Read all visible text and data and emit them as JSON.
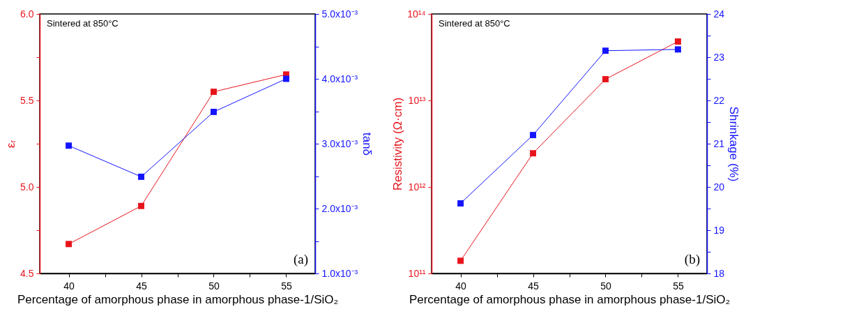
{
  "chart_data": [
    {
      "type": "line",
      "xlabel": "Percentage of amorphous phase in amorphous phase-1/SiO₂",
      "ylabel": "εᵣ",
      "y2label": "tanδ",
      "x": [
        40,
        45,
        50,
        55
      ],
      "xlim": [
        38,
        57
      ],
      "xticks": [
        40,
        {
          "value": 42.5,
          "label": null
        },
        45,
        {
          "value": 47.5,
          "label": null
        },
        50,
        {
          "value": 52.5,
          "label": null
        },
        55
      ],
      "ylim": [
        4.5,
        6.0
      ],
      "yticks": [
        {
          "value": 4.5,
          "label": "4.5"
        },
        {
          "value": 4.75,
          "label": null
        },
        {
          "value": 5,
          "label": "5.0"
        },
        {
          "value": 5.25,
          "label": null
        },
        {
          "value": 5.5,
          "label": "5.5"
        },
        {
          "value": 5.75,
          "label": null
        },
        {
          "value": 6,
          "label": "6.0"
        }
      ],
      "y2lim": [
        0.001,
        0.005
      ],
      "y2ticks": [
        {
          "value": 0.001,
          "label": "1.0x10⁻³"
        },
        {
          "value": 0.0015,
          "label": null
        },
        {
          "value": 0.002,
          "label": "2.0x10⁻³"
        },
        {
          "value": 0.0025,
          "label": null
        },
        {
          "value": 0.003,
          "label": "3.0x10⁻³"
        },
        {
          "value": 0.0035,
          "label": null
        },
        {
          "value": 0.004,
          "label": "4.0x10⁻³"
        },
        {
          "value": 0.0045,
          "label": null
        },
        {
          "value": 0.005,
          "label": "5.0x10⁻³"
        }
      ],
      "series": [
        {
          "color": "#e8141c",
          "values": [
            4.67,
            4.89,
            5.55,
            5.65
          ]
        },
        {
          "color": "#1414ff",
          "axis": "y2",
          "values": [
            0.00297,
            0.00249,
            0.00349,
            0.004
          ]
        }
      ],
      "marker": "square",
      "grid": false,
      "annotations": [
        "Sintered at 850°C",
        "(a)"
      ]
    },
    {
      "type": "line",
      "xlabel": "Percentage of amorphous phase in amorphous phase-1/SiO₂",
      "ylabel": "Resistivity (Ω·cm)",
      "y2label": "Shrinkage (%)",
      "x": [
        40,
        45,
        50,
        55
      ],
      "xlim": [
        38,
        57
      ],
      "xticks": [
        40,
        {
          "value": 42.5,
          "label": null
        },
        45,
        {
          "value": 47.5,
          "label": null
        },
        50,
        {
          "value": 52.5,
          "label": null
        },
        55
      ],
      "log": "y",
      "ylim": [
        100000000000.0,
        100000000000000.0
      ],
      "yticks": [
        {
          "value": 100000000000.0,
          "label": "10¹¹"
        },
        {
          "value": 1000000000000.0,
          "label": "10¹²"
        },
        {
          "value": 10000000000000.0,
          "label": "10¹³"
        },
        {
          "value": 100000000000000.0,
          "label": "10¹⁴"
        }
      ],
      "y2lim": [
        18,
        24
      ],
      "y2ticks": [
        18,
        {
          "value": 18.5,
          "label": null
        },
        19,
        {
          "value": 19.5,
          "label": null
        },
        20,
        {
          "value": 20.5,
          "label": null
        },
        21,
        {
          "value": 21.5,
          "label": null
        },
        22,
        {
          "value": 22.5,
          "label": null
        },
        23,
        {
          "value": 23.5,
          "label": null
        },
        24
      ],
      "series": [
        {
          "color": "#e8141c",
          "values": [
            140000000000.0,
            2450000000000.0,
            17600000000000.0,
            48000000000000.0
          ]
        },
        {
          "color": "#1414ff",
          "axis": "y2",
          "values": [
            19.62,
            21.2,
            23.15,
            23.18
          ]
        }
      ],
      "marker": "square",
      "grid": false,
      "annotations": [
        "Sintered at 850°C",
        "(b)"
      ]
    }
  ]
}
